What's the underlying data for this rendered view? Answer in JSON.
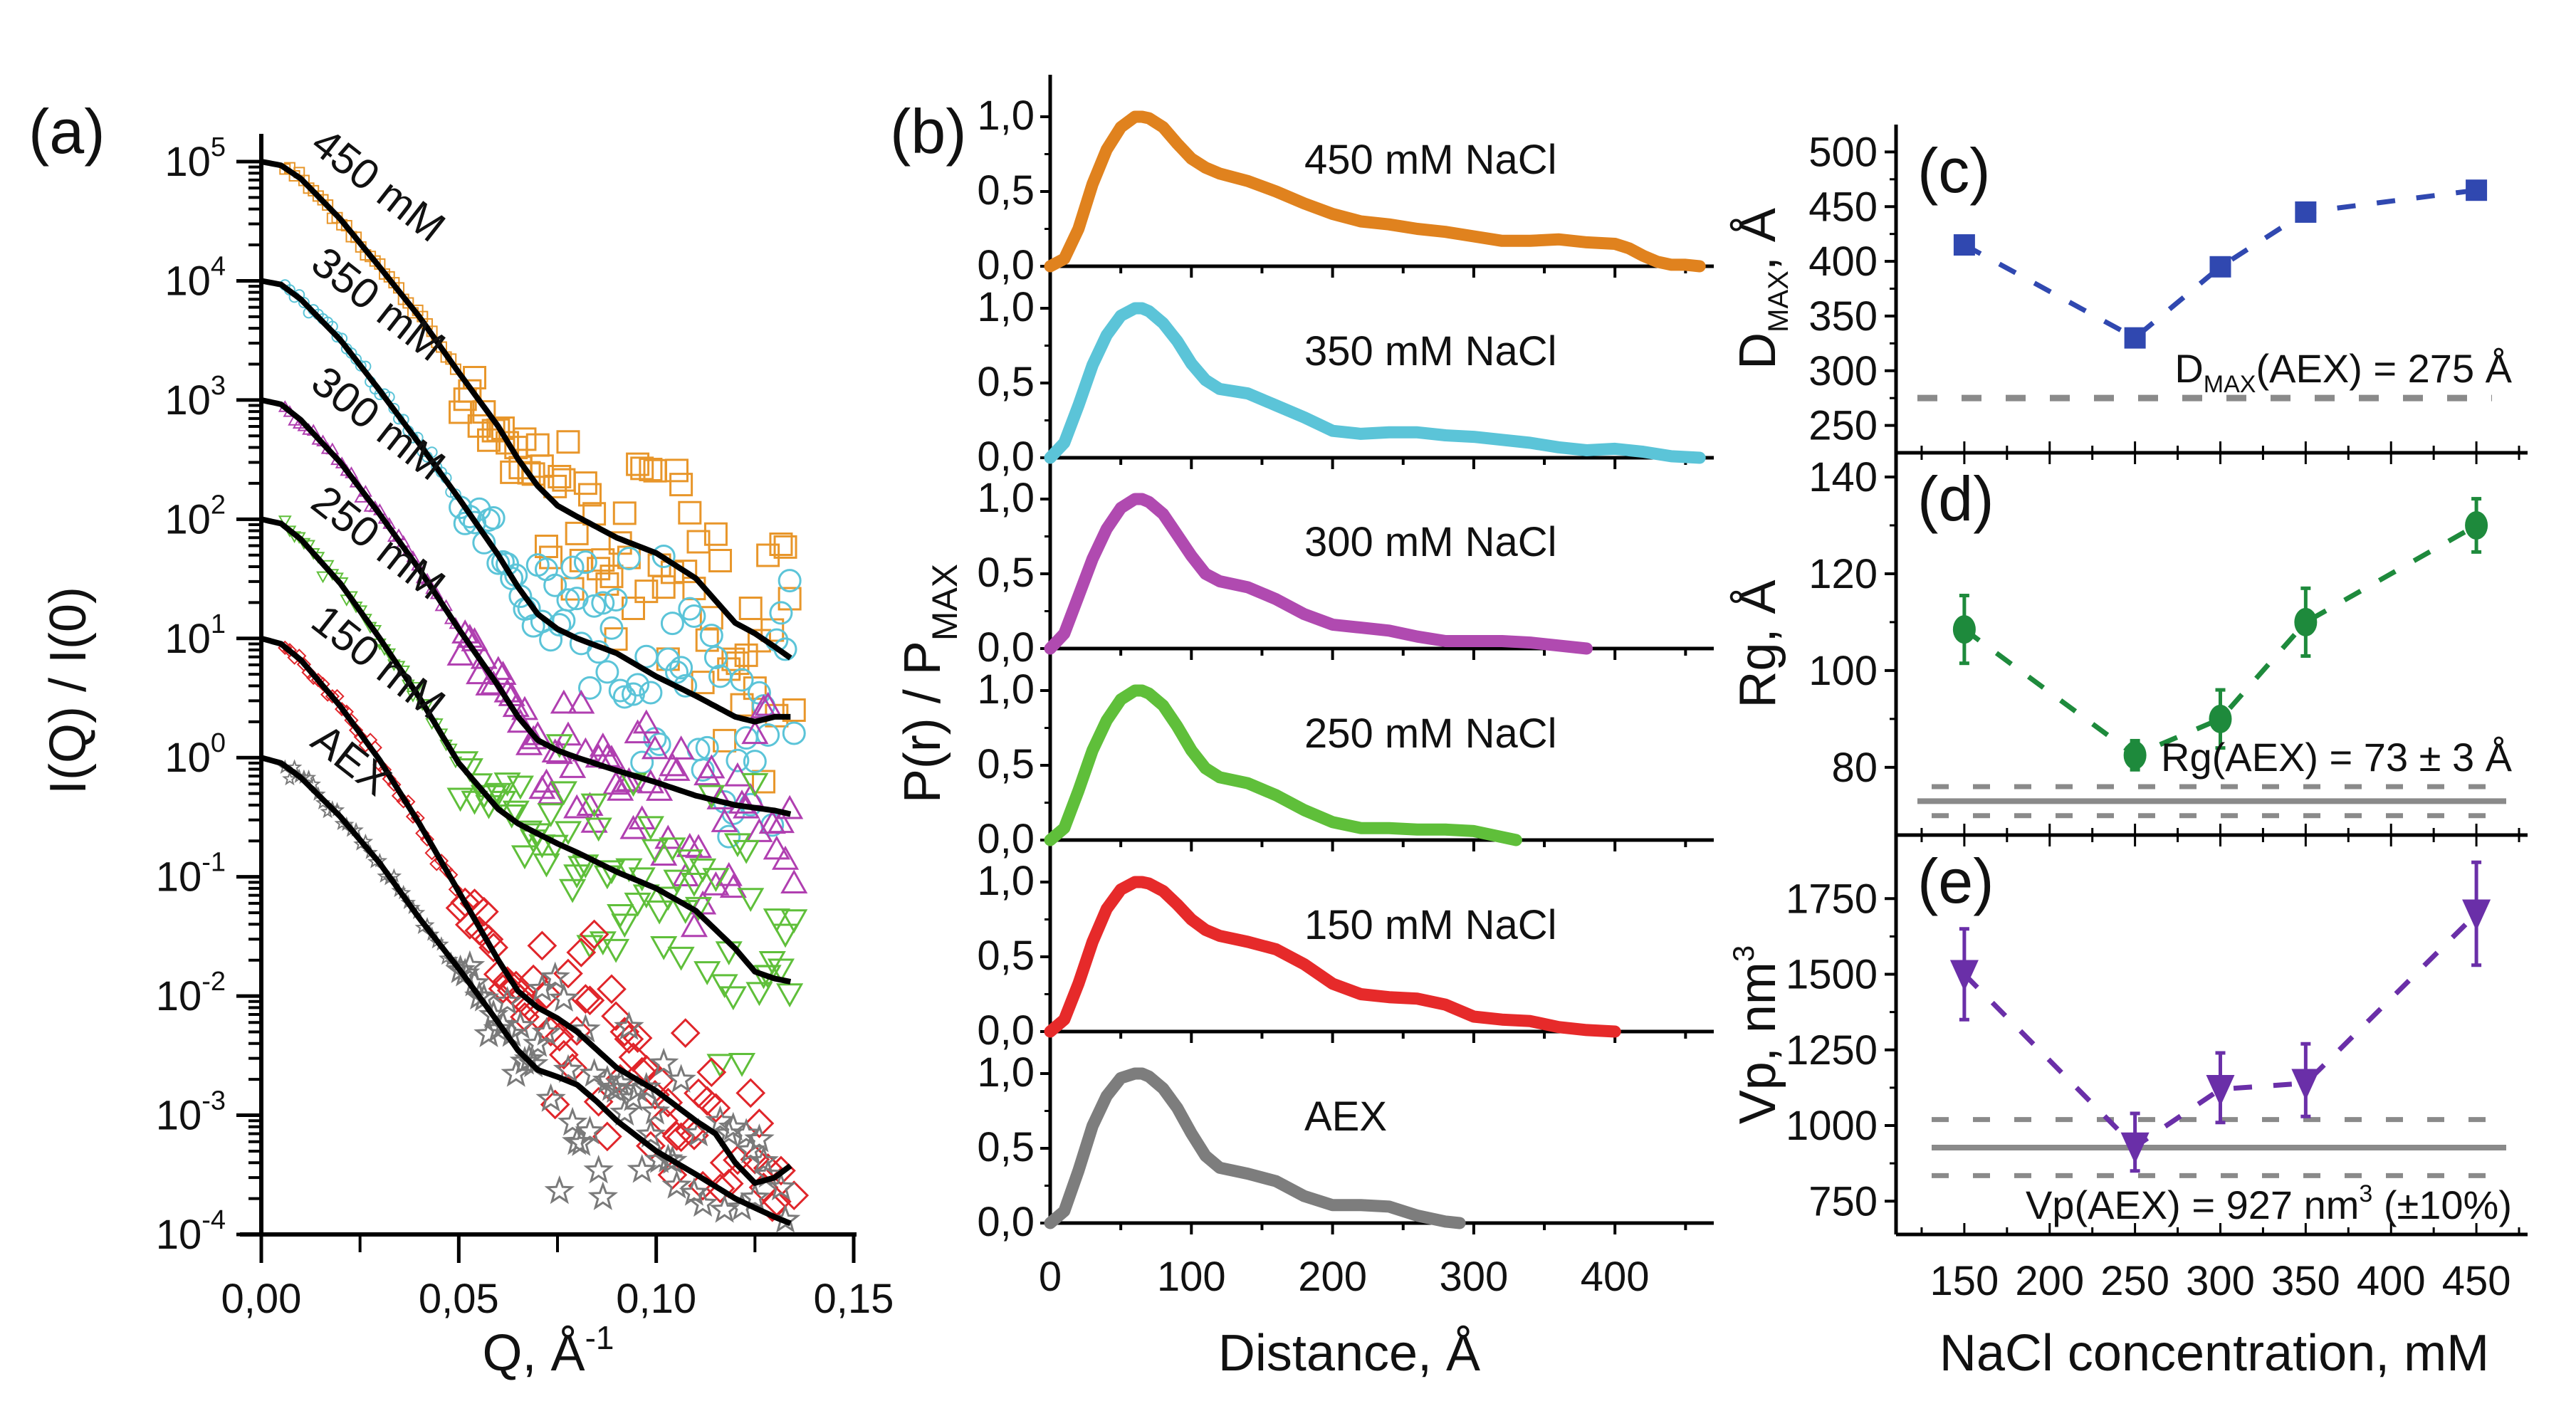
{
  "figure": {
    "panels": [
      "(a)",
      "(b)",
      "(c)",
      "(d)",
      "(e)"
    ]
  },
  "chart_data": [
    {
      "id": "a",
      "type": "scatter",
      "panel_label": "(a)",
      "title": "",
      "xlabel": "Q, Å",
      "xlabel_sup": "-1",
      "ylabel": "I(Q) / I(0)",
      "xscale": "linear",
      "yscale": "log",
      "xlim": [
        0.0,
        0.15
      ],
      "ylim": [
        0.0001,
        100000
      ],
      "xticks": [
        "0,00",
        "0,05",
        "0,10",
        "0,15"
      ],
      "xtick_values": [
        0.0,
        0.05,
        0.1,
        0.15
      ],
      "yticks": [
        {
          "base": "10",
          "exp": "5",
          "value": 100000
        },
        {
          "base": "10",
          "exp": "4",
          "value": 10000
        },
        {
          "base": "10",
          "exp": "3",
          "value": 1000
        },
        {
          "base": "10",
          "exp": "2",
          "value": 100
        },
        {
          "base": "10",
          "exp": "1",
          "value": 10
        },
        {
          "base": "10",
          "exp": "0",
          "value": 1
        },
        {
          "base": "10",
          "exp": "-1",
          "value": 0.1
        },
        {
          "base": "10",
          "exp": "-2",
          "value": 0.01
        },
        {
          "base": "10",
          "exp": "-3",
          "value": 0.001
        },
        {
          "base": "10",
          "exp": "-4",
          "value": 0.0001
        }
      ],
      "series": [
        {
          "name": "450 mM",
          "marker": "square",
          "color": "#e8962a",
          "offset": 100000,
          "fit_x": [
            0,
            0.005,
            0.01,
            0.02,
            0.03,
            0.04,
            0.05,
            0.06,
            0.065,
            0.07,
            0.075,
            0.08,
            0.09,
            0.1,
            0.11,
            0.12,
            0.125,
            0.13,
            0.135
          ],
          "fit_y": [
            1,
            0.93,
            0.72,
            0.33,
            0.13,
            0.05,
            0.017,
            0.006,
            0.0032,
            0.0019,
            0.0013,
            0.00105,
            0.0007,
            0.00052,
            0.00032,
            0.000135,
            0.00011,
            8.5e-05,
            6.5e-05
          ]
        },
        {
          "name": "350 mM",
          "marker": "circle",
          "color": "#5bc4d8",
          "offset": 10000,
          "fit_x": [
            0,
            0.005,
            0.01,
            0.02,
            0.03,
            0.04,
            0.05,
            0.06,
            0.065,
            0.07,
            0.075,
            0.08,
            0.09,
            0.1,
            0.11,
            0.12,
            0.125,
            0.13,
            0.135
          ],
          "fit_y": [
            1,
            0.93,
            0.7,
            0.32,
            0.12,
            0.043,
            0.015,
            0.005,
            0.0027,
            0.0016,
            0.0012,
            0.001,
            0.00075,
            0.00048,
            0.00033,
            0.00022,
            0.0002,
            0.00022,
            0.00022
          ]
        },
        {
          "name": "300 mM",
          "marker": "triangle-up",
          "color": "#b03fb0",
          "offset": 1000,
          "fit_x": [
            0,
            0.005,
            0.01,
            0.02,
            0.03,
            0.04,
            0.05,
            0.06,
            0.065,
            0.07,
            0.075,
            0.08,
            0.09,
            0.1,
            0.11,
            0.12,
            0.13,
            0.135
          ],
          "fit_y": [
            1,
            0.92,
            0.68,
            0.3,
            0.11,
            0.038,
            0.012,
            0.004,
            0.0022,
            0.0014,
            0.00115,
            0.001,
            0.00078,
            0.00062,
            0.00048,
            0.0004,
            0.00036,
            0.00033
          ]
        },
        {
          "name": "250 mM",
          "marker": "triangle-down",
          "color": "#5fbf3a",
          "offset": 100,
          "fit_x": [
            0,
            0.005,
            0.01,
            0.02,
            0.03,
            0.04,
            0.05,
            0.06,
            0.065,
            0.07,
            0.075,
            0.08,
            0.09,
            0.1,
            0.11,
            0.12,
            0.125,
            0.13,
            0.135
          ],
          "fit_y": [
            1,
            0.92,
            0.68,
            0.29,
            0.1,
            0.032,
            0.009,
            0.0037,
            0.0028,
            0.0023,
            0.0019,
            0.0016,
            0.0011,
            0.0008,
            0.00052,
            0.00025,
            0.00016,
            0.00014,
            0.00013
          ]
        },
        {
          "name": "150 mM",
          "marker": "diamond",
          "color": "#e0252a",
          "offset": 10,
          "fit_x": [
            0,
            0.005,
            0.01,
            0.02,
            0.03,
            0.04,
            0.05,
            0.06,
            0.065,
            0.07,
            0.075,
            0.08,
            0.09,
            0.1,
            0.11,
            0.115,
            0.12,
            0.125,
            0.13,
            0.135
          ],
          "fit_y": [
            1,
            0.9,
            0.66,
            0.27,
            0.095,
            0.028,
            0.0075,
            0.002,
            0.0011,
            0.0008,
            0.00065,
            0.0005,
            0.00025,
            0.00016,
            9e-05,
            7e-05,
            4e-05,
            2.7e-05,
            3e-05,
            4e-05
          ]
        },
        {
          "name": "AEX",
          "marker": "star",
          "color": "#7a7a7a",
          "offset": 1,
          "fit_x": [
            0,
            0.005,
            0.01,
            0.02,
            0.03,
            0.04,
            0.05,
            0.06,
            0.065,
            0.07,
            0.075,
            0.08,
            0.085,
            0.09,
            0.1,
            0.11,
            0.12,
            0.13,
            0.135
          ],
          "fit_y": [
            1,
            0.9,
            0.68,
            0.32,
            0.13,
            0.045,
            0.017,
            0.006,
            0.0035,
            0.0024,
            0.0021,
            0.0018,
            0.0013,
            0.0009,
            0.0005,
            0.00032,
            0.0002,
            0.00014,
            0.00012
          ]
        }
      ],
      "fit_color": "#000000"
    },
    {
      "id": "b",
      "type": "line",
      "panel_label": "(b)",
      "xlabel": "Distance, Å",
      "ylabel": "P(r) / P",
      "ylabel_sub": "MAX",
      "xlim": [
        0,
        470
      ],
      "ylim": [
        0,
        1.2
      ],
      "xticks": [
        "0",
        "100",
        "200",
        "300",
        "400"
      ],
      "xtick_values": [
        0,
        100,
        200,
        300,
        400
      ],
      "yticks": [
        "0,0",
        "0,5",
        "1,0"
      ],
      "ytick_values": [
        0,
        0.5,
        1.0
      ],
      "series": [
        {
          "name": "450 mM NaCl",
          "color": "#e0821e",
          "x": [
            0,
            10,
            20,
            30,
            40,
            50,
            60,
            65,
            70,
            80,
            90,
            100,
            110,
            120,
            140,
            160,
            180,
            200,
            220,
            240,
            260,
            280,
            300,
            320,
            340,
            360,
            380,
            400,
            410,
            420,
            430,
            440,
            450,
            460
          ],
          "y": [
            0,
            0.05,
            0.25,
            0.55,
            0.78,
            0.93,
            1.0,
            1.0,
            0.99,
            0.93,
            0.82,
            0.72,
            0.66,
            0.62,
            0.57,
            0.5,
            0.42,
            0.35,
            0.3,
            0.28,
            0.25,
            0.23,
            0.2,
            0.17,
            0.17,
            0.18,
            0.16,
            0.15,
            0.12,
            0.07,
            0.03,
            0.01,
            0.01,
            0.0
          ]
        },
        {
          "name": "350 mM NaCl",
          "color": "#5bc4d8",
          "x": [
            0,
            10,
            20,
            30,
            40,
            50,
            60,
            65,
            70,
            80,
            90,
            100,
            110,
            120,
            140,
            160,
            180,
            200,
            220,
            240,
            260,
            280,
            300,
            320,
            340,
            360,
            380,
            400,
            420,
            440,
            460
          ],
          "y": [
            0,
            0.1,
            0.35,
            0.62,
            0.82,
            0.95,
            1.0,
            1.0,
            0.98,
            0.9,
            0.78,
            0.63,
            0.52,
            0.46,
            0.43,
            0.35,
            0.27,
            0.18,
            0.16,
            0.17,
            0.17,
            0.15,
            0.14,
            0.12,
            0.1,
            0.07,
            0.05,
            0.06,
            0.04,
            0.01,
            0.0
          ]
        },
        {
          "name": "300 mM NaCl",
          "color": "#b04ab0",
          "x": [
            0,
            10,
            20,
            30,
            40,
            50,
            60,
            65,
            70,
            80,
            90,
            100,
            110,
            120,
            140,
            160,
            180,
            200,
            220,
            240,
            260,
            280,
            300,
            320,
            340,
            360,
            380
          ],
          "y": [
            0,
            0.1,
            0.35,
            0.6,
            0.8,
            0.94,
            1.0,
            1.0,
            0.98,
            0.9,
            0.76,
            0.62,
            0.5,
            0.45,
            0.41,
            0.33,
            0.23,
            0.16,
            0.14,
            0.12,
            0.08,
            0.05,
            0.05,
            0.05,
            0.04,
            0.02,
            0.0
          ]
        },
        {
          "name": "250 mM NaCl",
          "color": "#5fbf3a",
          "x": [
            0,
            10,
            20,
            30,
            40,
            50,
            60,
            65,
            70,
            80,
            90,
            100,
            110,
            120,
            140,
            160,
            180,
            200,
            220,
            240,
            260,
            280,
            300,
            320,
            330
          ],
          "y": [
            0,
            0.08,
            0.33,
            0.6,
            0.8,
            0.94,
            1.0,
            1.0,
            0.98,
            0.9,
            0.76,
            0.6,
            0.48,
            0.42,
            0.38,
            0.3,
            0.2,
            0.12,
            0.08,
            0.08,
            0.07,
            0.07,
            0.06,
            0.02,
            0.0
          ]
        },
        {
          "name": "150 mM NaCl",
          "color": "#e62a2a",
          "x": [
            0,
            10,
            20,
            30,
            40,
            50,
            60,
            65,
            70,
            80,
            90,
            100,
            110,
            120,
            140,
            160,
            180,
            200,
            220,
            240,
            260,
            280,
            300,
            320,
            340,
            360,
            380,
            400
          ],
          "y": [
            0,
            0.08,
            0.32,
            0.6,
            0.82,
            0.95,
            1.0,
            1.0,
            0.99,
            0.94,
            0.85,
            0.75,
            0.68,
            0.64,
            0.6,
            0.55,
            0.45,
            0.32,
            0.25,
            0.23,
            0.22,
            0.18,
            0.1,
            0.08,
            0.07,
            0.03,
            0.01,
            0.0
          ]
        },
        {
          "name": "AEX",
          "color": "#7d7d7d",
          "x": [
            0,
            10,
            20,
            30,
            40,
            50,
            60,
            65,
            70,
            80,
            90,
            100,
            110,
            120,
            140,
            160,
            180,
            200,
            220,
            240,
            260,
            280,
            290
          ],
          "y": [
            0,
            0.08,
            0.35,
            0.65,
            0.85,
            0.97,
            1.0,
            1.0,
            0.98,
            0.9,
            0.77,
            0.6,
            0.45,
            0.37,
            0.33,
            0.28,
            0.18,
            0.12,
            0.12,
            0.11,
            0.05,
            0.01,
            0.0
          ]
        }
      ]
    },
    {
      "id": "c",
      "type": "line",
      "panel_label": "(c)",
      "ylabel": "D",
      "ylabel_sub": "MAX",
      "ylabel_suffix": ", Å",
      "xlim": [
        110,
        480
      ],
      "ylim": [
        225,
        525
      ],
      "yticks": [
        "250",
        "300",
        "350",
        "400",
        "450",
        "500"
      ],
      "ytick_values": [
        250,
        300,
        350,
        400,
        450,
        500
      ],
      "color": "#3048b0",
      "marker": "square",
      "x": [
        150,
        250,
        300,
        350,
        450
      ],
      "y": [
        415,
        330,
        395,
        445,
        465
      ],
      "reference": {
        "value": 275,
        "style": "dashed",
        "color": "#8a8a8a"
      },
      "annotation": {
        "prefix": "D",
        "sub": "MAX",
        "text": "(AEX) = 275 Å"
      }
    },
    {
      "id": "d",
      "type": "line",
      "panel_label": "(d)",
      "ylabel": "Rg, Å",
      "xlim": [
        110,
        480
      ],
      "ylim": [
        66,
        145
      ],
      "yticks": [
        "80",
        "100",
        "120",
        "140"
      ],
      "ytick_values": [
        80,
        100,
        120,
        140
      ],
      "color": "#1e8a3c",
      "marker": "circle",
      "x": [
        150,
        250,
        300,
        350,
        450
      ],
      "y": [
        108.5,
        82.5,
        90,
        110,
        130
      ],
      "yerr": [
        7,
        3,
        6,
        7,
        5.5
      ],
      "reference": {
        "value": 73,
        "band": 3,
        "color": "#8a8a8a"
      },
      "annotation": {
        "text": "Rg(AEX) = 73 ± 3 Å"
      }
    },
    {
      "id": "e",
      "type": "line",
      "panel_label": "(e)",
      "ylabel": "Vp, nm",
      "ylabel_sup": "3",
      "xlabel": "NaCl concentration, mM",
      "xlim": [
        110,
        480
      ],
      "ylim": [
        640,
        1960
      ],
      "xticks": [
        "150",
        "200",
        "250",
        "300",
        "350",
        "400",
        "450"
      ],
      "xtick_values": [
        150,
        200,
        250,
        300,
        350,
        400,
        450
      ],
      "yticks": [
        "750",
        "1000",
        "1250",
        "1500",
        "1750"
      ],
      "ytick_values": [
        750,
        1000,
        1250,
        1500,
        1750
      ],
      "color": "#6a2fa8",
      "marker": "triangle-down",
      "x": [
        150,
        250,
        300,
        350,
        450
      ],
      "y": [
        1500,
        930,
        1120,
        1140,
        1700
      ],
      "yerr_low": [
        150,
        80,
        110,
        110,
        170
      ],
      "yerr_high": [
        150,
        110,
        120,
        130,
        170
      ],
      "reference": {
        "value": 927,
        "band_pct": 10,
        "color": "#8a8a8a"
      },
      "annotation": {
        "text": "Vp(AEX) = 927 nm",
        "sup": "3",
        "suffix": " (±10%)"
      }
    }
  ]
}
